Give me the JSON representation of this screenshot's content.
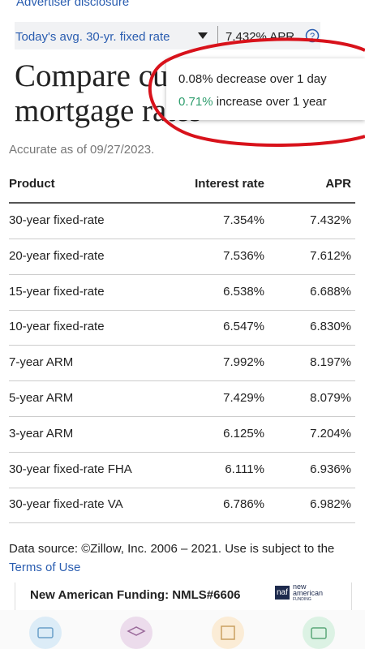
{
  "header": {
    "disclosure": "Advertiser disclosure"
  },
  "rate_bar": {
    "label": "Today's avg. 30-yr. fixed rate",
    "value": "7.432% APR"
  },
  "tooltip": {
    "lines": [
      {
        "amount": "0.08%",
        "text": "decrease over 1 day"
      },
      {
        "amount": "0.71%",
        "text": "increase over 1 year"
      }
    ]
  },
  "title": {
    "line1": "Compare current",
    "line2": "mortgage rates"
  },
  "accurate": "Accurate as of 09/27/2023.",
  "table": {
    "headers": [
      "Product",
      "Interest rate",
      "APR"
    ],
    "rows": [
      [
        "30-year fixed-rate",
        "7.354%",
        "7.432%"
      ],
      [
        "20-year fixed-rate",
        "7.536%",
        "7.612%"
      ],
      [
        "15-year fixed-rate",
        "6.538%",
        "6.688%"
      ],
      [
        "10-year fixed-rate",
        "6.547%",
        "6.830%"
      ],
      [
        "7-year ARM",
        "7.992%",
        "8.197%"
      ],
      [
        "5-year ARM",
        "7.429%",
        "8.079%"
      ],
      [
        "3-year ARM",
        "6.125%",
        "7.204%"
      ],
      [
        "30-year fixed-rate FHA",
        "6.111%",
        "6.936%"
      ],
      [
        "30-year fixed-rate VA",
        "6.786%",
        "6.982%"
      ]
    ]
  },
  "footer": {
    "text": "Data source: ©Zillow, Inc. 2006 – 2021. Use is subject to the",
    "link": "Terms of Use"
  },
  "ad": {
    "text": "New American Funding: NMLS#6606",
    "logo_short": "naf",
    "logo_line1": "new",
    "logo_line2": "american",
    "logo_line3": "FUNDING"
  }
}
